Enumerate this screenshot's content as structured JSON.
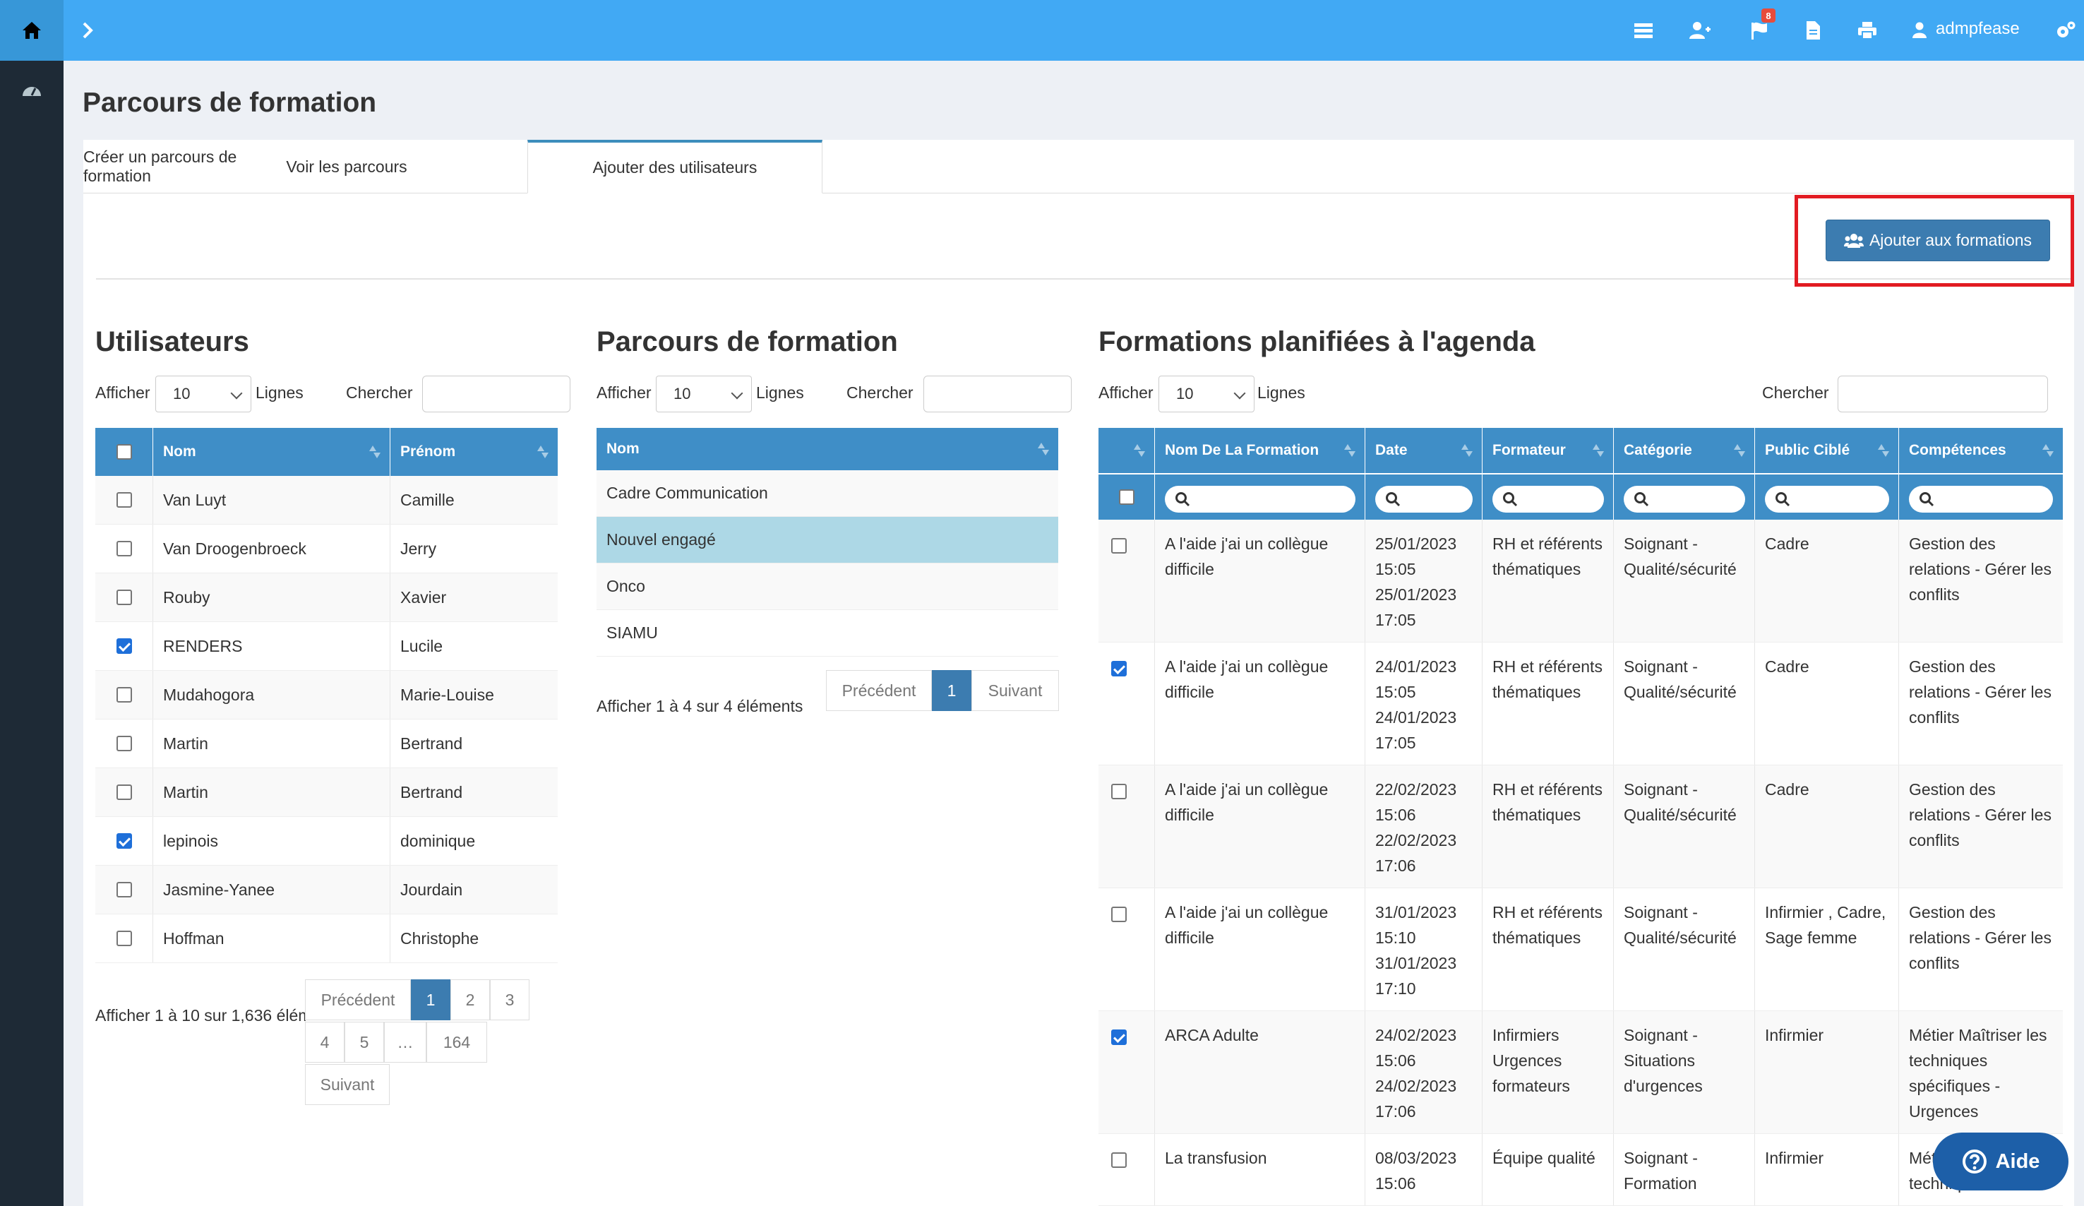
{
  "topbar": {
    "user_name": "admpfease",
    "notification_count": "8",
    "icons": [
      "home-icon",
      "chevron-right-icon",
      "list-icon",
      "user-plus-icon",
      "flag-icon",
      "file-icon",
      "print-icon",
      "user-icon",
      "settings-icon"
    ]
  },
  "sidebar": {
    "icons": [
      "dashboard-icon"
    ]
  },
  "page": {
    "title": "Parcours de formation"
  },
  "tabs": [
    {
      "label": "Créer un parcours de formation"
    },
    {
      "label": "Voir les parcours"
    },
    {
      "label": "Ajouter des utilisateurs"
    }
  ],
  "toolbar": {
    "add_label": "Ajouter aux formations"
  },
  "users": {
    "title": "Utilisateurs",
    "show_label": "Afficher",
    "lines_value": "10",
    "lines_label": "Lignes",
    "search_label": "Chercher",
    "columns": [
      "Nom",
      "Prénom"
    ],
    "rows": [
      {
        "nom": "Van Luyt",
        "prenom": "Camille",
        "checked": false
      },
      {
        "nom": "Van Droogenbroeck",
        "prenom": "Jerry",
        "checked": false
      },
      {
        "nom": "Rouby",
        "prenom": "Xavier",
        "checked": false
      },
      {
        "nom": "RENDERS",
        "prenom": "Lucile",
        "checked": true
      },
      {
        "nom": "Mudahogora",
        "prenom": "Marie-Louise",
        "checked": false
      },
      {
        "nom": "Martin",
        "prenom": "Bertrand",
        "checked": false
      },
      {
        "nom": "Martin",
        "prenom": "Bertrand",
        "checked": false
      },
      {
        "nom": "lepinois",
        "prenom": "dominique",
        "checked": true
      },
      {
        "nom": "Jasmine-Yanee",
        "prenom": "Jourdain",
        "checked": false
      },
      {
        "nom": "Hoffman",
        "prenom": "Christophe",
        "checked": false
      }
    ],
    "info": "Afficher 1 à 10 sur 1,636 élém",
    "pagination": {
      "prev": "Précédent",
      "pages": [
        "1",
        "2",
        "3",
        "4",
        "5",
        "…",
        "164"
      ],
      "next": "Suivant"
    }
  },
  "parcours": {
    "title": "Parcours de formation",
    "show_label": "Afficher",
    "lines_value": "10",
    "lines_label": "Lignes",
    "search_label": "Chercher",
    "column": "Nom",
    "rows": [
      "Cadre Communication",
      "Nouvel engagé",
      "Onco",
      "SIAMU"
    ],
    "info": "Afficher 1 à 4 sur 4 éléments",
    "pagination": {
      "prev": "Précédent",
      "page": "1",
      "next": "Suivant"
    }
  },
  "formations": {
    "title": "Formations planifiées à l'agenda",
    "show_label": "Afficher",
    "lines_value": "10",
    "lines_label": "Lignes",
    "search_label": "Chercher",
    "columns": [
      "Nom De La Formation",
      "Date",
      "Formateur",
      "Catégorie",
      "Public Ciblé",
      "Compétences"
    ],
    "rows": [
      {
        "checked": false,
        "nom": "A l'aide j'ai un collègue difficile",
        "date": "25/01/2023 15:05 25/01/2023 17:05",
        "formateur": "RH et référents thématiques",
        "categorie": "Soignant - Qualité/sécurité",
        "public": "Cadre",
        "competences": "Gestion des relations - Gérer les conflits"
      },
      {
        "checked": true,
        "nom": "A l'aide j'ai un collègue difficile",
        "date": "24/01/2023 15:05 24/01/2023 17:05",
        "formateur": "RH et référents thématiques",
        "categorie": "Soignant - Qualité/sécurité",
        "public": "Cadre",
        "competences": "Gestion des relations - Gérer les conflits"
      },
      {
        "checked": false,
        "nom": "A l'aide j'ai un collègue difficile",
        "date": "22/02/2023 15:06 22/02/2023 17:06",
        "formateur": "RH et référents thématiques",
        "categorie": "Soignant - Qualité/sécurité",
        "public": "Cadre",
        "competences": "Gestion des relations - Gérer les conflits"
      },
      {
        "checked": false,
        "nom": "A l'aide j'ai un collègue difficile",
        "date": "31/01/2023 15:10 31/01/2023 17:10",
        "formateur": "RH et référents thématiques",
        "categorie": "Soignant - Qualité/sécurité",
        "public": "Infirmier , Cadre, Sage femme",
        "competences": "Gestion des relations - Gérer les conflits"
      },
      {
        "checked": true,
        "nom": "ARCA Adulte",
        "date": "24/02/2023 15:06 24/02/2023 17:06",
        "formateur": "Infirmiers Urgences formateurs",
        "categorie": "Soignant - Situations d'urgences",
        "public": "Infirmier",
        "competences": "Métier Maîtriser les techniques spécifiques - Urgences"
      },
      {
        "checked": false,
        "nom": "La transfusion",
        "date": "08/03/2023 15:06",
        "formateur": "Équipe qualité",
        "categorie": "Soignant - Formation",
        "public": "Infirmier",
        "competences": "Métier Maîtriser les techniques"
      }
    ]
  },
  "help": {
    "label": "Aide"
  }
}
